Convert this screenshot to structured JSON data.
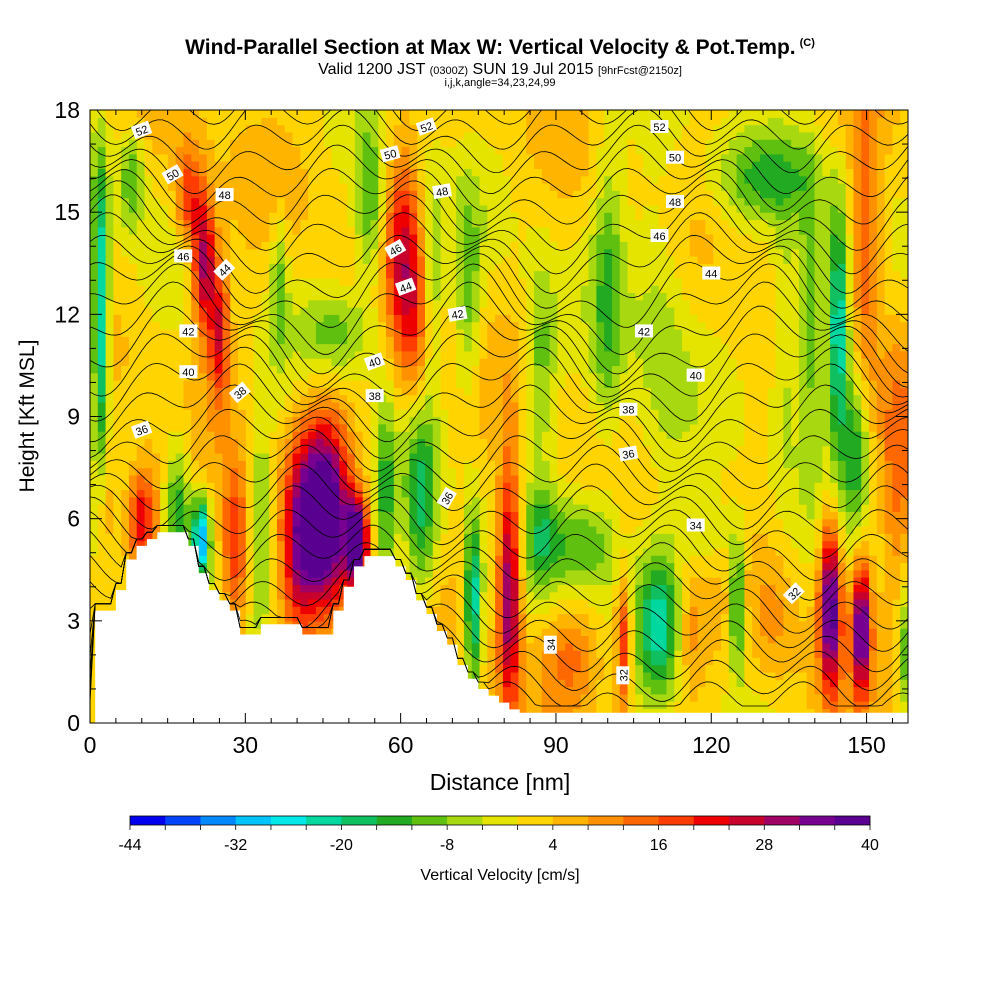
{
  "header": {
    "title": "Wind-Parallel Section at Max W: Vertical Velocity & Pot.Temp.",
    "title_mark": "(C)",
    "valid_prefix": "Valid 1200 JST",
    "valid_utc": "(0300Z)",
    "valid_date": "SUN 19 Jul 2015",
    "forecast": "[9hrFcst@2150z]",
    "indices": "i,j,k,angle=34,23,24,99"
  },
  "colorbar": {
    "label": "Vertical Velocity [cm/s]",
    "tick_labels": [
      "-44",
      "-32",
      "-20",
      "-8",
      "4",
      "16",
      "28",
      "40"
    ],
    "colors": [
      "#0000ee",
      "#0044ff",
      "#0088ff",
      "#00c4ff",
      "#00e8e8",
      "#00d8a0",
      "#10c060",
      "#22aa22",
      "#60c010",
      "#a8d810",
      "#e4e400",
      "#ffd400",
      "#ffb400",
      "#ff9000",
      "#ff6800",
      "#ff3c00",
      "#ee0000",
      "#c8002c",
      "#a00064",
      "#780090",
      "#5a0090"
    ]
  },
  "chart_data": {
    "type": "heatmap",
    "xlabel": "Distance [nm]",
    "ylabel": "Height [Kft MSL]",
    "x_ticks": [
      "0",
      "30",
      "60",
      "90",
      "120",
      "150"
    ],
    "y_ticks": [
      "0",
      "3",
      "6",
      "9",
      "12",
      "15",
      "18"
    ],
    "xlim": [
      0,
      158
    ],
    "ylim": [
      0,
      18
    ],
    "field": "Vertical Velocity",
    "units": "cm/s",
    "scale": [
      -44,
      40
    ],
    "contour_field": "Pot.Temp.",
    "terrain_profile": {
      "x": [
        0,
        1,
        3,
        5,
        7,
        9,
        11,
        13,
        15,
        17,
        19,
        21,
        23,
        25,
        27,
        29,
        31,
        33,
        35,
        37,
        39,
        41,
        43,
        45,
        47,
        49,
        51,
        53,
        55,
        57,
        59,
        61,
        63,
        65,
        67,
        69,
        71,
        73,
        75,
        77,
        79,
        81,
        83,
        85,
        87,
        89,
        91,
        158
      ],
      "y": [
        0,
        3.3,
        3.3,
        3.9,
        4.8,
        5.2,
        5.4,
        5.6,
        5.6,
        5.6,
        5.2,
        4.4,
        3.9,
        3.6,
        3.3,
        2.6,
        2.6,
        2.9,
        2.9,
        2.9,
        2.9,
        2.6,
        2.6,
        2.6,
        3.3,
        4.0,
        4.6,
        4.9,
        4.9,
        4.9,
        4.6,
        4.2,
        3.6,
        3.2,
        2.7,
        2.3,
        1.7,
        1.3,
        1.0,
        0.8,
        0.6,
        0.4,
        0.3,
        0.3,
        0.3,
        0.3,
        0.3,
        0.3
      ]
    },
    "features": [
      {
        "x": 2,
        "y": 12,
        "w": -30,
        "wx": 1.6,
        "wy": 4.5
      },
      {
        "x": 3,
        "y": 6.5,
        "w": 10,
        "wx": 2.5,
        "wy": 2
      },
      {
        "x": 8,
        "y": 16,
        "w": -14,
        "wx": 2.5,
        "wy": 1.5
      },
      {
        "x": 10,
        "y": 6,
        "w": 24,
        "wx": 3,
        "wy": 1.5
      },
      {
        "x": 19,
        "y": 15.5,
        "w": 18,
        "wx": 2.5,
        "wy": 1.5
      },
      {
        "x": 22,
        "y": 13.5,
        "w": 30,
        "wx": 2.2,
        "wy": 2
      },
      {
        "x": 25,
        "y": 11.5,
        "w": 22,
        "wx": 2,
        "wy": 2
      },
      {
        "x": 17,
        "y": 6,
        "w": -18,
        "wx": 2.5,
        "wy": 2.5
      },
      {
        "x": 21.5,
        "y": 5.5,
        "w": -34,
        "wx": 1.6,
        "wy": 1.2
      },
      {
        "x": 28,
        "y": 5,
        "w": 20,
        "wx": 2.5,
        "wy": 2.5
      },
      {
        "x": 33,
        "y": 6,
        "w": -12,
        "wx": 2,
        "wy": 3
      },
      {
        "x": 36.5,
        "y": 13,
        "w": -12,
        "wx": 1.6,
        "wy": 2
      },
      {
        "x": 40,
        "y": 5,
        "w": 16,
        "wx": 3,
        "wy": 3
      },
      {
        "x": 45,
        "y": 6.2,
        "w": 44,
        "wx": 5,
        "wy": 2.8
      },
      {
        "x": 51.5,
        "y": 5.3,
        "w": 44,
        "wx": 2,
        "wy": 1.2
      },
      {
        "x": 48,
        "y": 11.5,
        "w": -12,
        "wx": 7,
        "wy": 1.3
      },
      {
        "x": 54,
        "y": 15,
        "w": -14,
        "wx": 3,
        "wy": 2.5
      },
      {
        "x": 60,
        "y": 14,
        "w": 18,
        "wx": 3,
        "wy": 3
      },
      {
        "x": 63,
        "y": 12,
        "w": 14,
        "wx": 3,
        "wy": 3
      },
      {
        "x": 57,
        "y": 6.5,
        "w": -14,
        "wx": 2,
        "wy": 3
      },
      {
        "x": 64,
        "y": 6.5,
        "w": -18,
        "wx": 3,
        "wy": 3
      },
      {
        "x": 66,
        "y": 13,
        "w": -12,
        "wx": 2,
        "wy": 3
      },
      {
        "x": 73,
        "y": 12.5,
        "w": -12,
        "wx": 2.5,
        "wy": 3
      },
      {
        "x": 74,
        "y": 3.5,
        "w": -26,
        "wx": 1.6,
        "wy": 2.5
      },
      {
        "x": 81,
        "y": 4,
        "w": 34,
        "wx": 2.2,
        "wy": 3.5
      },
      {
        "x": 87,
        "y": 10.5,
        "w": -12,
        "wx": 3,
        "wy": 3
      },
      {
        "x": 87,
        "y": 5.5,
        "w": -10,
        "wx": 3,
        "wy": 1.5
      },
      {
        "x": 95,
        "y": 5.3,
        "w": -14,
        "wx": 8,
        "wy": 1.5
      },
      {
        "x": 93,
        "y": 2,
        "w": 10,
        "wx": 6,
        "wy": 1.5
      },
      {
        "x": 100,
        "y": 12.5,
        "w": -12,
        "wx": 3,
        "wy": 5
      },
      {
        "x": 103,
        "y": 2.2,
        "w": 22,
        "wx": 1.5,
        "wy": 2
      },
      {
        "x": 110,
        "y": 3,
        "w": -22,
        "wx": 4,
        "wy": 2
      },
      {
        "x": 110,
        "y": 12,
        "w": -8,
        "wx": 6,
        "wy": 5
      },
      {
        "x": 116,
        "y": 2.5,
        "w": 8,
        "wx": 3,
        "wy": 2
      },
      {
        "x": 125,
        "y": 3.5,
        "w": -22,
        "wx": 1.5,
        "wy": 2
      },
      {
        "x": 119,
        "y": 5.5,
        "w": -8,
        "wx": 6,
        "wy": 1.3
      },
      {
        "x": 132,
        "y": 3,
        "w": 6,
        "wx": 4,
        "wy": 2
      },
      {
        "x": 134,
        "y": 11.5,
        "w": -10,
        "wx": 2.5,
        "wy": 4
      },
      {
        "x": 139,
        "y": 12,
        "w": -16,
        "wx": 2.5,
        "wy": 4
      },
      {
        "x": 144.5,
        "y": 11.5,
        "w": -28,
        "wx": 2,
        "wy": 3.5
      },
      {
        "x": 148,
        "y": 8,
        "w": -16,
        "wx": 2.5,
        "wy": 2.5
      },
      {
        "x": 143,
        "y": 3.5,
        "w": 38,
        "wx": 2,
        "wy": 2.5
      },
      {
        "x": 149,
        "y": 2.8,
        "w": 36,
        "wx": 1.8,
        "wy": 2
      },
      {
        "x": 150,
        "y": 14,
        "w": 16,
        "wx": 3,
        "wy": 4
      },
      {
        "x": 156,
        "y": 7,
        "w": 10,
        "wx": 3,
        "wy": 5
      },
      {
        "x": 158,
        "y": 2,
        "w": -16,
        "wx": 2,
        "wy": 2
      },
      {
        "x": 130,
        "y": 16,
        "w": -12,
        "wx": 10,
        "wy": 1.2
      }
    ],
    "contour_labels": [
      {
        "text": "52",
        "x": 10,
        "y": 17.4,
        "rot": -20
      },
      {
        "text": "52",
        "x": 65,
        "y": 17.5,
        "rot": -20
      },
      {
        "text": "52",
        "x": 110,
        "y": 17.5,
        "rot": 0
      },
      {
        "text": "50",
        "x": 16,
        "y": 16.1,
        "rot": -30
      },
      {
        "text": "50",
        "x": 58,
        "y": 16.7,
        "rot": -15
      },
      {
        "text": "50",
        "x": 113,
        "y": 16.6,
        "rot": 0
      },
      {
        "text": "48",
        "x": 26,
        "y": 15.5,
        "rot": 0
      },
      {
        "text": "48",
        "x": 68,
        "y": 15.6,
        "rot": -10
      },
      {
        "text": "48",
        "x": 113,
        "y": 15.3,
        "rot": 0
      },
      {
        "text": "46",
        "x": 18,
        "y": 13.7,
        "rot": 0
      },
      {
        "text": "46",
        "x": 59,
        "y": 13.9,
        "rot": -30
      },
      {
        "text": "46",
        "x": 110,
        "y": 14.3,
        "rot": 0
      },
      {
        "text": "44",
        "x": 26,
        "y": 13.3,
        "rot": -45
      },
      {
        "text": "44",
        "x": 61,
        "y": 12.8,
        "rot": -20
      },
      {
        "text": "44",
        "x": 120,
        "y": 13.2,
        "rot": 0
      },
      {
        "text": "42",
        "x": 19,
        "y": 11.5,
        "rot": 0
      },
      {
        "text": "42",
        "x": 71,
        "y": 12,
        "rot": -10
      },
      {
        "text": "42",
        "x": 107,
        "y": 11.5,
        "rot": 0
      },
      {
        "text": "40",
        "x": 19,
        "y": 10.3,
        "rot": 0
      },
      {
        "text": "40",
        "x": 55,
        "y": 10.6,
        "rot": -20
      },
      {
        "text": "40",
        "x": 117,
        "y": 10.2,
        "rot": 0
      },
      {
        "text": "38",
        "x": 29,
        "y": 9.7,
        "rot": -40
      },
      {
        "text": "38",
        "x": 55,
        "y": 9.6,
        "rot": 0
      },
      {
        "text": "38",
        "x": 104,
        "y": 9.2,
        "rot": 0
      },
      {
        "text": "36",
        "x": 10,
        "y": 8.6,
        "rot": -20
      },
      {
        "text": "36",
        "x": 69,
        "y": 6.6,
        "rot": -60
      },
      {
        "text": "36",
        "x": 104,
        "y": 7.9,
        "rot": -10
      },
      {
        "text": "34",
        "x": 117,
        "y": 5.8,
        "rot": 0
      },
      {
        "text": "34",
        "x": 89,
        "y": 2.3,
        "rot": -90
      },
      {
        "text": "32",
        "x": 103,
        "y": 1.4,
        "rot": -90
      },
      {
        "text": "32",
        "x": 136,
        "y": 3.8,
        "rot": -45
      }
    ]
  }
}
